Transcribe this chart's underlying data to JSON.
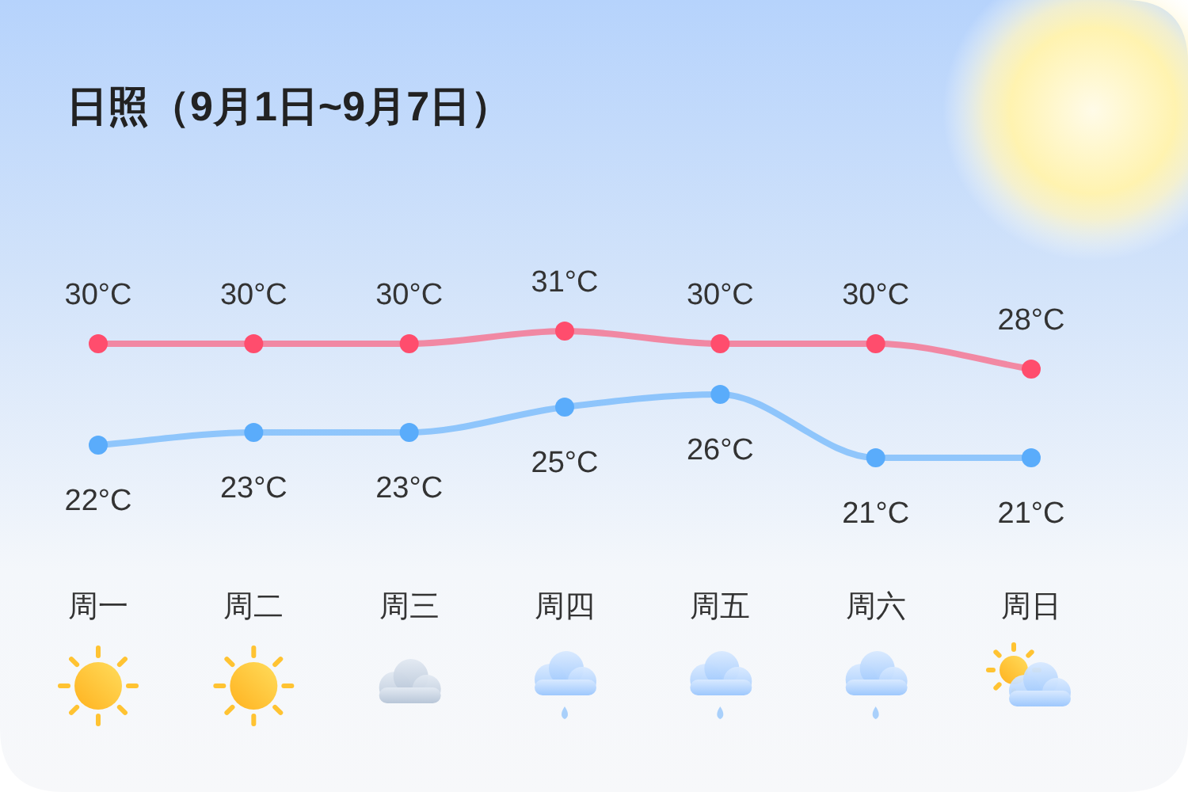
{
  "chart_data": {
    "type": "line",
    "title": "日照（9月1日~9月7日）",
    "categories": [
      "周一",
      "周二",
      "周三",
      "周四",
      "周五",
      "周六",
      "周日"
    ],
    "series": [
      {
        "color": "#ff4d6d",
        "values": [
          30,
          30,
          30,
          31,
          30,
          30,
          28
        ],
        "value_labels": [
          "30°C",
          "30°C",
          "30°C",
          "31°C",
          "30°C",
          "30°C",
          "28°C"
        ]
      },
      {
        "color": "#5aacfb",
        "values": [
          22,
          23,
          23,
          25,
          26,
          21,
          21
        ],
        "value_labels": [
          "22°C",
          "23°C",
          "23°C",
          "25°C",
          "26°C",
          "21°C",
          "21°C"
        ]
      }
    ],
    "marker": "circle",
    "tick_labels": "x"
  }
}
